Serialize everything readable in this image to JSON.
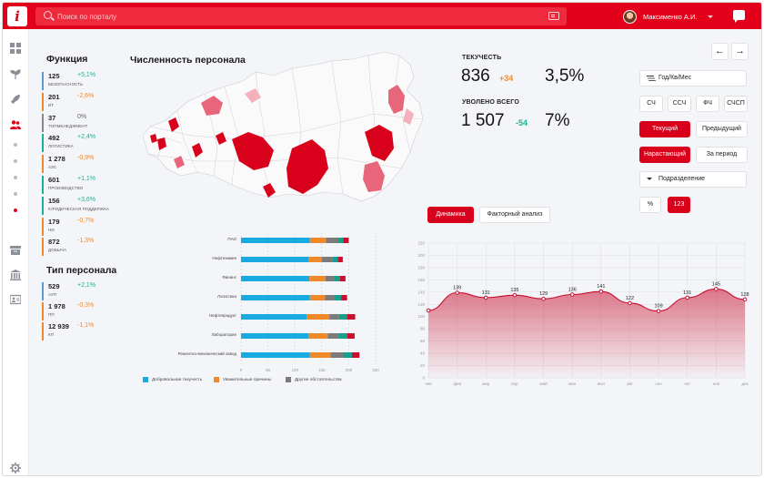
{
  "app": {
    "logo_text": "i"
  },
  "header": {
    "search_placeholder": "Поиск по порталу",
    "user_name": "Максименко А.И.",
    "icons": [
      "search-icon",
      "id-card-icon",
      "chevron-down-icon",
      "chat-icon"
    ]
  },
  "sidebar": {
    "icons": [
      "grid-icon",
      "seedling-icon",
      "rocket-icon",
      "users-icon",
      "archive-icon",
      "bank-icon",
      "id-card-icon",
      "settings-icon"
    ],
    "active": "users-icon"
  },
  "functions": {
    "title": "Функция",
    "items": [
      {
        "value": "125",
        "delta": "+5,1%",
        "label": "БЕЗОПАСНОСТЬ",
        "trend": "pos",
        "color": "#5b9bd5"
      },
      {
        "value": "201",
        "delta": "-2,6%",
        "label": "ИТ",
        "trend": "neg",
        "color": "#f0892a"
      },
      {
        "value": "37",
        "delta": "0%",
        "label": "ТОПМЕНЕДЖМЕНТ",
        "trend": "neu",
        "color": "#888888"
      },
      {
        "value": "492",
        "delta": "+2,4%",
        "label": "ЛОГИСТИКА",
        "trend": "pos",
        "color": "#19b394"
      },
      {
        "value": "1 278",
        "delta": "-0,9%",
        "label": "АЗС",
        "trend": "neg",
        "color": "#f0892a"
      },
      {
        "value": "601",
        "delta": "+1,1%",
        "label": "ПРОИЗВОДСТВО",
        "trend": "pos",
        "color": "#19b394"
      },
      {
        "value": "156",
        "delta": "+3,6%",
        "label": "ЮРИДИЧЕСКАЯ ПОДДЕРЖКА",
        "trend": "pos",
        "color": "#19b394"
      },
      {
        "value": "179",
        "delta": "-0,7%",
        "label": "НИ",
        "trend": "neg",
        "color": "#f0892a"
      },
      {
        "value": "872",
        "delta": "-1,3%",
        "label": "ДОБЫЧА",
        "trend": "neg",
        "color": "#f0892a"
      }
    ]
  },
  "personnel_type": {
    "title": "Тип персонала",
    "items": [
      {
        "value": "529",
        "delta": "+2,1%",
        "label": "АУП",
        "trend": "pos",
        "color": "#5b9bd5"
      },
      {
        "value": "1 978",
        "delta": "-0,3%",
        "label": "ПП",
        "trend": "neg",
        "color": "#f0892a"
      },
      {
        "value": "12 939",
        "delta": "-1,1%",
        "label": "КП",
        "trend": "neg",
        "color": "#f0892a"
      }
    ]
  },
  "map": {
    "title": "Численность персонала"
  },
  "stats": {
    "turnover_label": "ТЕКУЧЕСТЬ",
    "turnover_value": "836",
    "turnover_delta": "+34",
    "turnover_pct": "3,5%",
    "fired_label": "УВОЛЕНО ВСЕГО",
    "fired_value": "1 507",
    "fired_delta": "-54",
    "fired_pct": "7%"
  },
  "controls": {
    "prev_arrow": "←",
    "next_arrow": "→",
    "period_select": "Год/Кв/Мес",
    "metrics": [
      "СЧ",
      "ССЧ",
      "ФЧ",
      "СЧСП"
    ],
    "period_current": "Текущий",
    "period_previous": "Предыдущий",
    "accum": "Нарастающий",
    "for_period": "За период",
    "subdivision_select": "Подразделение",
    "unit_percent": "%",
    "unit_count": "123"
  },
  "tabs": {
    "dynamics": "Динамика",
    "factor": "Факторный анализ"
  },
  "chart_data": [
    {
      "type": "bar",
      "orientation": "horizontal",
      "stacked": true,
      "categories": [
        "ПАО",
        "Нефтехимия",
        "Финанс",
        "Логистика",
        "Нефтепродукт",
        "Лаборатория",
        "Ремонтно-механический завод"
      ],
      "series": [
        {
          "name": "Добровольная текучесть",
          "color": "#1aa9e0",
          "values": [
            128,
            125,
            127,
            128,
            122,
            125,
            128
          ]
        },
        {
          "name": "Уважительные причины",
          "color": "#f0892a",
          "values": [
            30,
            25,
            30,
            28,
            42,
            36,
            38
          ]
        },
        {
          "name": "Другие обстоятельства",
          "color": "#7b7b7b",
          "values": [
            22,
            20,
            17,
            18,
            18,
            20,
            24
          ]
        },
        {
          "name": "",
          "color": "#1a9e8c",
          "values": [
            10,
            10,
            10,
            12,
            15,
            16,
            16
          ]
        },
        {
          "name": "",
          "color": "#c8102e",
          "values": [
            10,
            9,
            10,
            11,
            15,
            14,
            14
          ]
        }
      ],
      "xticks": [
        "0",
        "50",
        "100",
        "150",
        "200",
        "250"
      ],
      "xlim": [
        0,
        250
      ],
      "grid": true,
      "legend_position": "bottom"
    },
    {
      "type": "area",
      "categories": [
        "янв",
        "фев",
        "мар",
        "апр",
        "май",
        "июн",
        "июл",
        "авг",
        "сен",
        "окт",
        "ноя",
        "дек"
      ],
      "values": [
        110,
        139,
        131,
        135,
        129,
        136,
        141,
        122,
        109,
        131,
        145,
        128
      ],
      "point_labels": [
        "",
        "139",
        "131",
        "135",
        "129",
        "136",
        "141",
        "122",
        "109",
        "131",
        "145",
        "128"
      ],
      "yticks": [
        "0",
        "20",
        "40",
        "60",
        "80",
        "100",
        "120",
        "140",
        "160",
        "180",
        "200",
        "220"
      ],
      "ylim": [
        0,
        220
      ],
      "color": "#c8102e",
      "grid": true
    }
  ]
}
